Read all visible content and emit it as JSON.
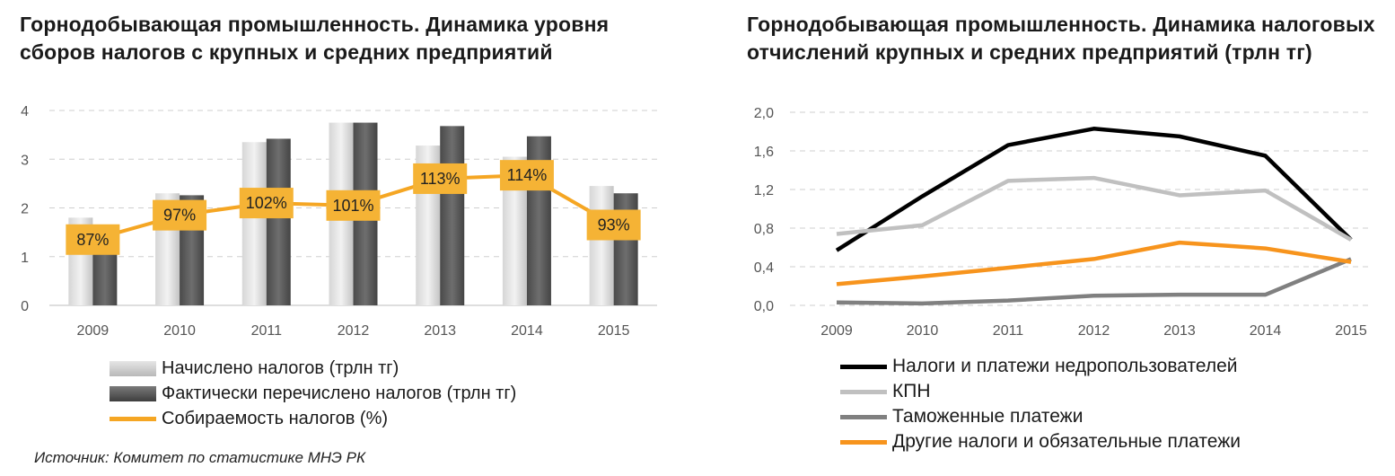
{
  "chart_data": [
    {
      "type": "bar",
      "title": "Горнодобывающая промышленность. Динамика уровня сборов налогов с крупных и средних предприятий",
      "categories": [
        "2009",
        "2010",
        "2011",
        "2012",
        "2013",
        "2014",
        "2015"
      ],
      "ylim": [
        0,
        4
      ],
      "yticks": [
        "0",
        "1",
        "2",
        "3",
        "4"
      ],
      "grid": true,
      "legend_position": "bottom",
      "series": [
        {
          "name": "Начислено налогов (трлн тг)",
          "values": [
            1.8,
            2.3,
            3.35,
            3.75,
            3.28,
            3.05,
            2.45
          ],
          "color": "#c8c8c8"
        },
        {
          "name": "Фактически перечислено налогов (трлн тг)",
          "values": [
            1.57,
            2.26,
            3.42,
            3.75,
            3.68,
            3.47,
            2.3
          ],
          "color": "#5a5a5a"
        }
      ],
      "line_series": {
        "name": "Собираемость налогов (%)",
        "color": "#f5a623",
        "values": [
          87,
          97,
          102,
          101,
          113,
          114,
          93
        ],
        "labels": [
          "87%",
          "97%",
          "102%",
          "101%",
          "113%",
          "114%",
          "93%"
        ],
        "plot_y": [
          1.35,
          1.85,
          2.1,
          2.05,
          2.6,
          2.67,
          1.65
        ]
      }
    },
    {
      "type": "line",
      "title": "Горнодобывающая промышленность. Динамика налоговых отчислений крупных и средних предприятий (трлн тг)",
      "categories": [
        "2009",
        "2010",
        "2011",
        "2012",
        "2013",
        "2014",
        "2015"
      ],
      "ylim": [
        0,
        2.0
      ],
      "yticks": [
        "0,0",
        "0,4",
        "0,8",
        "1,2",
        "1,6",
        "2,0"
      ],
      "grid": true,
      "legend_position": "bottom",
      "series": [
        {
          "name": "Налоги и платежи недропользователей",
          "color": "#000000",
          "values": [
            0.57,
            1.13,
            1.66,
            1.83,
            1.75,
            1.55,
            0.68
          ]
        },
        {
          "name": "КПН",
          "color": "#c0c0c0",
          "values": [
            0.74,
            0.83,
            1.29,
            1.32,
            1.14,
            1.19,
            0.68
          ]
        },
        {
          "name": "Таможенные платежи",
          "color": "#808080",
          "values": [
            0.03,
            0.02,
            0.05,
            0.1,
            0.11,
            0.11,
            0.48
          ]
        },
        {
          "name": "Другие налоги и обязательные платежи",
          "color": "#f7941d",
          "values": [
            0.22,
            0.3,
            0.39,
            0.48,
            0.65,
            0.59,
            0.45
          ]
        }
      ]
    }
  ],
  "source": "Источник: Комитет по статистике МНЭ РК"
}
